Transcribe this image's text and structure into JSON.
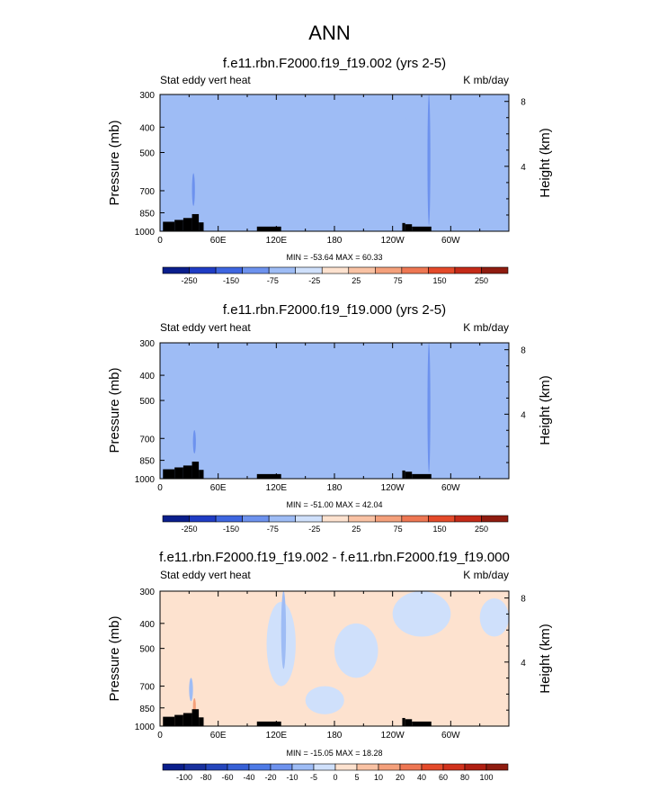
{
  "main_title": "ANN",
  "chart_data": [
    {
      "type": "heatmap",
      "title": "f.e11.rbn.F2000.f19_f19.002 (yrs 2-5)",
      "left_label": "Stat eddy vert heat",
      "right_label": "K mb/day",
      "ylabel": "Pressure (mb)",
      "y2label": "Height (km)",
      "xticks": [
        "0",
        "60E",
        "120E",
        "180",
        "120W",
        "60W"
      ],
      "xtick_lon": [
        0,
        60,
        120,
        180,
        240,
        300
      ],
      "xlim": [
        0,
        360
      ],
      "yticks": [
        "300",
        "400",
        "500",
        "700",
        "850",
        "1000"
      ],
      "ytick_p": [
        300,
        400,
        500,
        700,
        850,
        1000
      ],
      "ylim": [
        300,
        1000
      ],
      "y2ticks": [
        "8",
        "4"
      ],
      "y2tick_km": [
        8,
        4
      ],
      "stats": "MIN = -53.64   MAX =  60.33",
      "min": -53.64,
      "max": 60.33,
      "levels": [
        "-250",
        "-150",
        "-75",
        "-25",
        "25",
        "75",
        "150",
        "250"
      ],
      "colors": [
        "#0a1e8c",
        "#1f3cc4",
        "#3e66e0",
        "#6d92ee",
        "#9ebcf5",
        "#cfe0fb",
        "#fde2cf",
        "#f9c2a4",
        "#f4a07b",
        "#ee7753",
        "#e44a2a",
        "#c42a18",
        "#8f1c10"
      ],
      "features": [
        {
          "lon0": 0,
          "lon1": 360,
          "p0": 300,
          "p1": 1000,
          "v": -5,
          "label": "background-negative"
        },
        {
          "lon0": 0,
          "lon1": 12,
          "p0": 300,
          "p1": 1000,
          "v": 5
        },
        {
          "lon0": 45,
          "lon1": 100,
          "p0": 300,
          "p1": 600,
          "v": 5
        },
        {
          "lon0": 100,
          "lon1": 270,
          "p0": 300,
          "p1": 820,
          "v": 5
        },
        {
          "lon0": 275,
          "lon1": 360,
          "p0": 330,
          "p1": 780,
          "v": 5
        },
        {
          "lon0": 33,
          "lon1": 36,
          "p0": 600,
          "p1": 800,
          "v": -30
        },
        {
          "lon0": 276,
          "lon1": 279,
          "p0": 300,
          "p1": 950,
          "v": -30
        }
      ]
    },
    {
      "type": "heatmap",
      "title": "f.e11.rbn.F2000.f19_f19.000 (yrs 2-5)",
      "left_label": "Stat eddy vert heat",
      "right_label": "K mb/day",
      "ylabel": "Pressure (mb)",
      "y2label": "Height (km)",
      "xticks": [
        "0",
        "60E",
        "120E",
        "180",
        "120W",
        "60W"
      ],
      "xtick_lon": [
        0,
        60,
        120,
        180,
        240,
        300
      ],
      "xlim": [
        0,
        360
      ],
      "yticks": [
        "300",
        "400",
        "500",
        "700",
        "850",
        "1000"
      ],
      "ytick_p": [
        300,
        400,
        500,
        700,
        850,
        1000
      ],
      "ylim": [
        300,
        1000
      ],
      "y2ticks": [
        "8",
        "4"
      ],
      "y2tick_km": [
        8,
        4
      ],
      "stats": "MIN = -51.00   MAX =  42.04",
      "min": -51.0,
      "max": 42.04,
      "levels": [
        "-250",
        "-150",
        "-75",
        "-25",
        "25",
        "75",
        "150",
        "250"
      ],
      "colors": [
        "#0a1e8c",
        "#1f3cc4",
        "#3e66e0",
        "#6d92ee",
        "#9ebcf5",
        "#cfe0fb",
        "#fde2cf",
        "#f9c2a4",
        "#f4a07b",
        "#ee7753",
        "#e44a2a",
        "#c42a18",
        "#8f1c10"
      ],
      "features": [
        {
          "lon0": 0,
          "lon1": 360,
          "p0": 300,
          "p1": 1000,
          "v": -5,
          "label": "background-negative"
        },
        {
          "lon0": 0,
          "lon1": 10,
          "p0": 300,
          "p1": 1000,
          "v": 5
        },
        {
          "lon0": 105,
          "lon1": 115,
          "p0": 300,
          "p1": 1000,
          "v": 5
        },
        {
          "lon0": 155,
          "lon1": 275,
          "p0": 300,
          "p1": 850,
          "v": 5
        },
        {
          "lon0": 40,
          "lon1": 155,
          "p0": 720,
          "p1": 1000,
          "v": 5
        },
        {
          "lon0": 280,
          "lon1": 360,
          "p0": 550,
          "p1": 900,
          "v": 5
        },
        {
          "lon0": 34,
          "lon1": 37,
          "p0": 650,
          "p1": 800,
          "v": -30
        },
        {
          "lon0": 276,
          "lon1": 279,
          "p0": 300,
          "p1": 950,
          "v": -30
        }
      ]
    },
    {
      "type": "heatmap",
      "title": "f.e11.rbn.F2000.f19_f19.002 - f.e11.rbn.F2000.f19_f19.000",
      "left_label": "Stat eddy vert heat",
      "right_label": "K mb/day",
      "ylabel": "Pressure (mb)",
      "y2label": "Height (km)",
      "xticks": [
        "0",
        "60E",
        "120E",
        "180",
        "120W",
        "60W"
      ],
      "xtick_lon": [
        0,
        60,
        120,
        180,
        240,
        300
      ],
      "xlim": [
        0,
        360
      ],
      "yticks": [
        "300",
        "400",
        "500",
        "700",
        "850",
        "1000"
      ],
      "ytick_p": [
        300,
        400,
        500,
        700,
        850,
        1000
      ],
      "ylim": [
        300,
        1000
      ],
      "y2ticks": [
        "8",
        "4"
      ],
      "y2tick_km": [
        8,
        4
      ],
      "stats": "MIN = -15.05   MAX =  18.28",
      "min": -15.05,
      "max": 18.28,
      "levels": [
        "-100",
        "-80",
        "-60",
        "-40",
        "-20",
        "-10",
        "-5",
        "0",
        "5",
        "10",
        "20",
        "40",
        "60",
        "80",
        "100"
      ],
      "colors": [
        "#0a1e8c",
        "#18309e",
        "#2446bc",
        "#3660d6",
        "#4d7ae6",
        "#6d92ee",
        "#9ebcf5",
        "#cfe0fb",
        "#fde2cf",
        "#f9c2a4",
        "#f4a07b",
        "#ee7753",
        "#e44a2a",
        "#d1321c",
        "#b01f12",
        "#8f1c10"
      ],
      "features": [
        {
          "lon0": 0,
          "lon1": 360,
          "p0": 300,
          "p1": 1000,
          "v": 2,
          "label": "background-positive"
        },
        {
          "lon0": 110,
          "lon1": 140,
          "p0": 330,
          "p1": 700,
          "v": -3
        },
        {
          "lon0": 180,
          "lon1": 225,
          "p0": 400,
          "p1": 650,
          "v": -3
        },
        {
          "lon0": 240,
          "lon1": 300,
          "p0": 300,
          "p1": 450,
          "v": -3
        },
        {
          "lon0": 330,
          "lon1": 360,
          "p0": 320,
          "p1": 450,
          "v": -3
        },
        {
          "lon0": 150,
          "lon1": 190,
          "p0": 700,
          "p1": 900,
          "v": -3
        },
        {
          "lon0": 125,
          "lon1": 130,
          "p0": 300,
          "p1": 600,
          "v": -7
        },
        {
          "lon0": 30,
          "lon1": 34,
          "p0": 650,
          "p1": 800,
          "v": -7
        },
        {
          "lon0": 34,
          "lon1": 37,
          "p0": 780,
          "p1": 900,
          "v": 12
        }
      ]
    }
  ]
}
